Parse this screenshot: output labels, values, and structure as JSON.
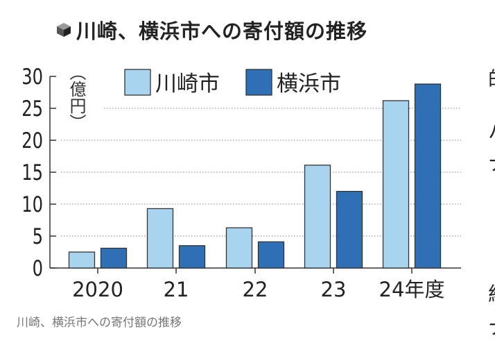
{
  "title": "川崎、横浜市への寄付額の推移",
  "caption": "川崎、横浜市への寄付額の推移",
  "side_text": [
    "的",
    "ハ",
    "ナ",
    "紀",
    "ナ"
  ],
  "colors": {
    "kawasaki": "#a9d4f0",
    "yokohama": "#2f6fb3",
    "grid": "#999999",
    "axis": "#333333"
  },
  "chart_data": {
    "type": "bar",
    "title": "川崎、横浜市への寄付額の推移",
    "unit_label": "（億円）",
    "xlabel": "",
    "ylabel": "億円",
    "categories": [
      "2020",
      "21",
      "22",
      "23",
      "24年度"
    ],
    "series": [
      {
        "name": "川崎市",
        "values": [
          2.5,
          9.3,
          6.3,
          16.1,
          26.2
        ]
      },
      {
        "name": "横浜市",
        "values": [
          3.1,
          3.5,
          4.1,
          12.0,
          28.8
        ]
      }
    ],
    "ylim": [
      0,
      30
    ],
    "yticks": [
      "0",
      "5",
      "10",
      "15",
      "20",
      "25",
      "30"
    ],
    "grid": true,
    "legend": "top-left"
  }
}
